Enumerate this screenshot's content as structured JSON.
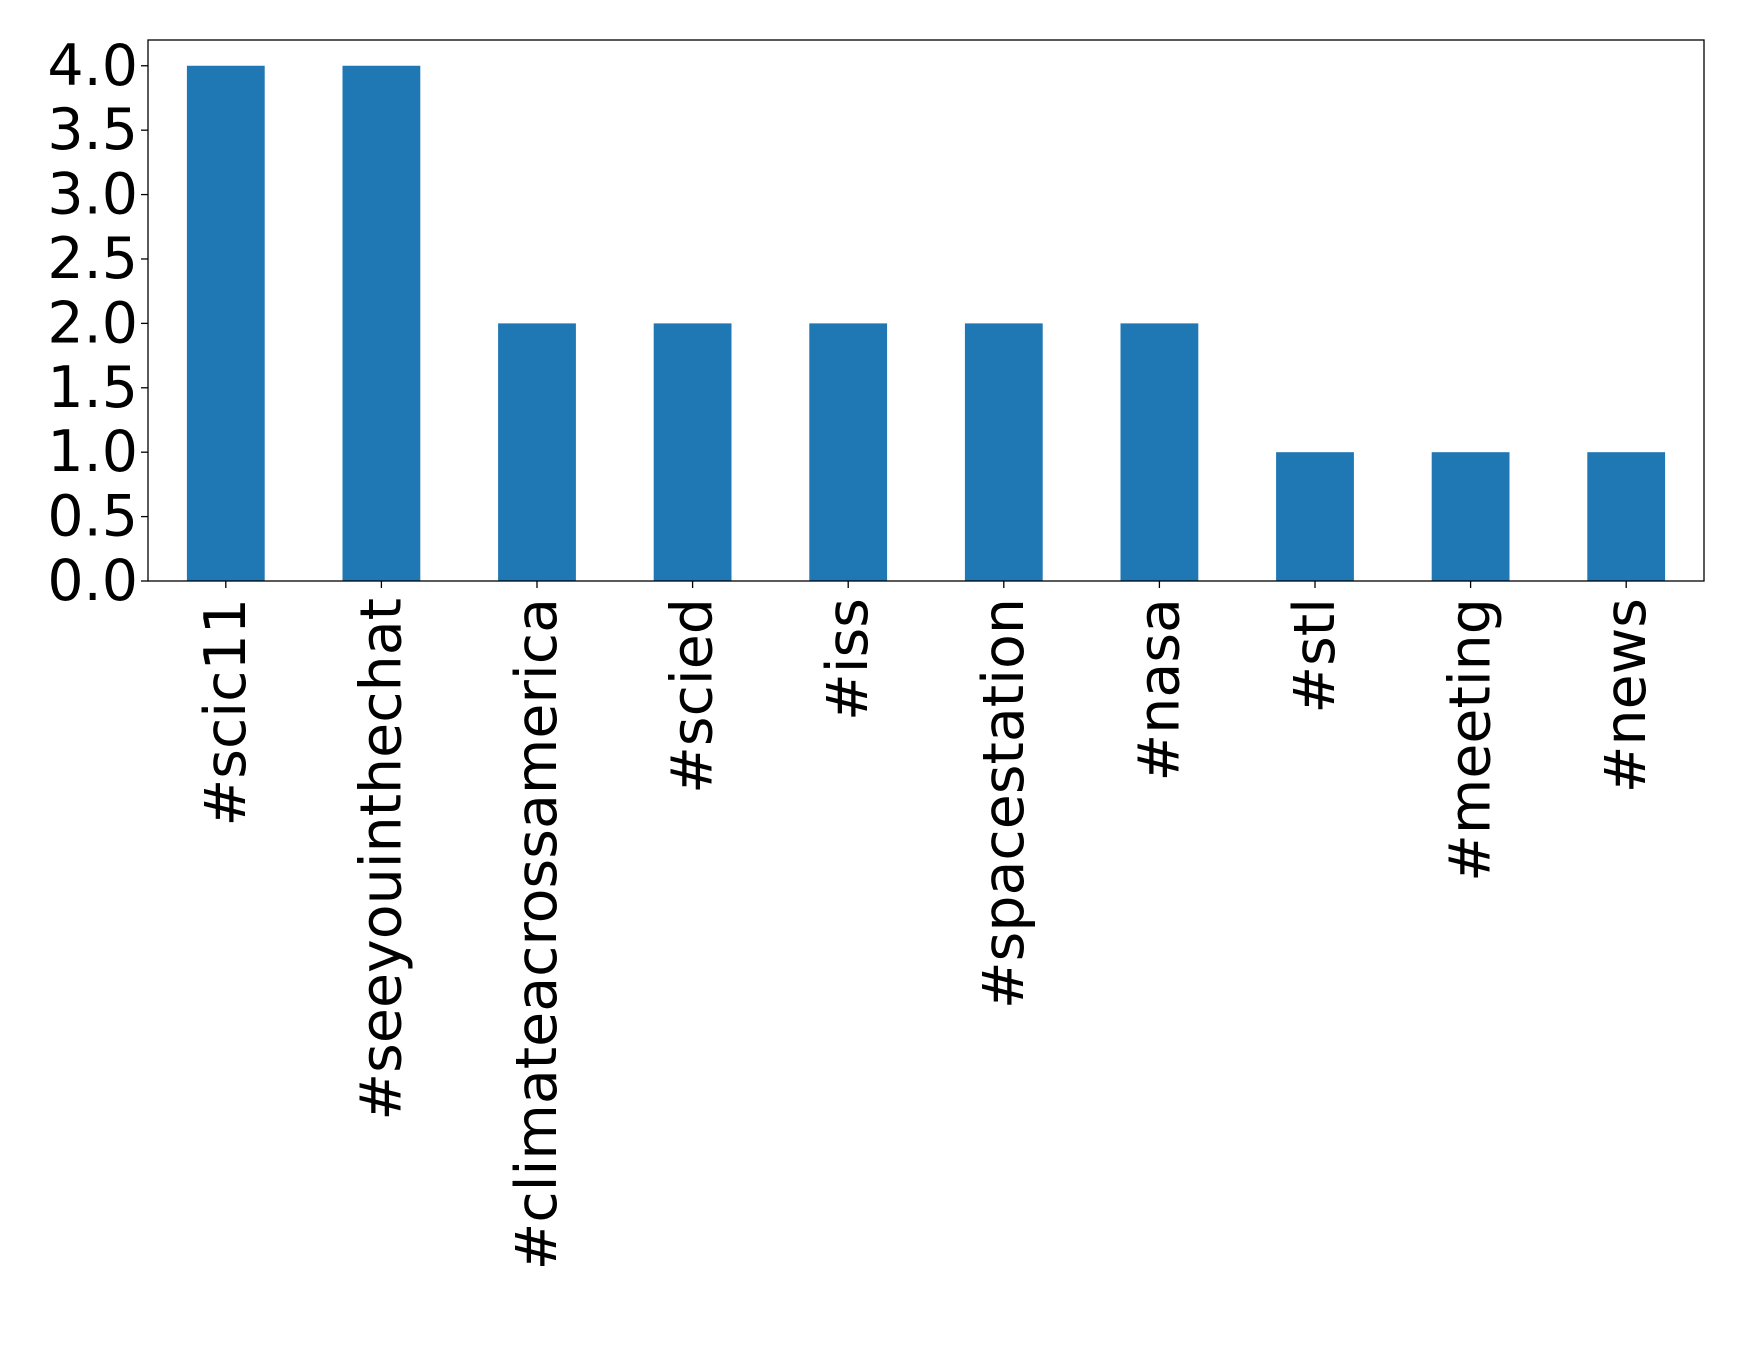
{
  "chart_data": {
    "type": "bar",
    "categories": [
      "#scic11",
      "#seeyouinthechat",
      "#climateacrossamerica",
      "#scied",
      "#iss",
      "#spacestation",
      "#nasa",
      "#stl",
      "#meeting",
      "#news"
    ],
    "values": [
      4,
      4,
      2,
      2,
      2,
      2,
      2,
      1,
      1,
      1
    ],
    "ylim": [
      0,
      4.2
    ],
    "yticks": [
      "0.0",
      "0.5",
      "1.0",
      "1.5",
      "2.0",
      "2.5",
      "3.0",
      "3.5",
      "4.0"
    ],
    "title": "",
    "xlabel": "",
    "ylabel": "",
    "grid": false,
    "bar_color": "#1f77b4"
  }
}
